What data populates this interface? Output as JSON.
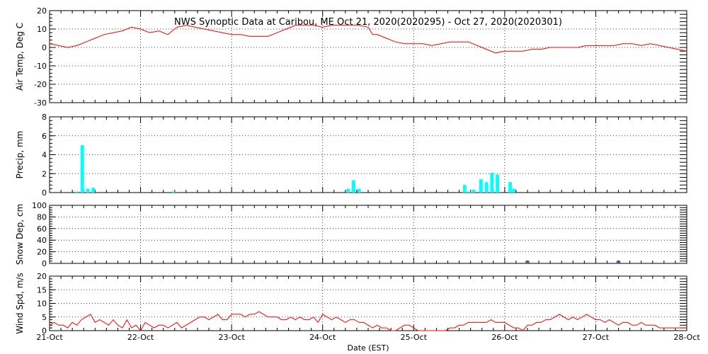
{
  "title": "NWS Synoptic Data at Caribou, ME   Oct 21, 2020(2020295) - Oct 27, 2020(2020301)",
  "chart_data": {
    "type": "line",
    "x_axis": {
      "label": "Date (EST)",
      "tick_labels": [
        "21-Oct",
        "22-Oct",
        "23-Oct",
        "24-Oct",
        "25-Oct",
        "26-Oct",
        "27-Oct",
        "28-Oct"
      ],
      "start": 0,
      "end": 7,
      "unit": "days since 21-Oct"
    },
    "panels": [
      {
        "id": "air-temp",
        "ylabel": "Air Temp, Deg C",
        "type": "line",
        "color": "#ff0000",
        "ylim": [
          -30,
          20
        ],
        "yticks": [
          20,
          10,
          0,
          -10,
          -20,
          -30
        ],
        "series": {
          "x": [
            0,
            0.1,
            0.2,
            0.3,
            0.4,
            0.5,
            0.6,
            0.7,
            0.8,
            0.9,
            1.0,
            1.1,
            1.2,
            1.3,
            1.4,
            1.5,
            1.6,
            1.7,
            1.8,
            1.9,
            2.0,
            2.1,
            2.2,
            2.3,
            2.4,
            2.5,
            2.6,
            2.7,
            2.8,
            2.9,
            3.0,
            3.1,
            3.2,
            3.3,
            3.4,
            3.5,
            3.55,
            3.6,
            3.7,
            3.8,
            3.9,
            4.0,
            4.1,
            4.2,
            4.3,
            4.4,
            4.5,
            4.6,
            4.7,
            4.8,
            4.9,
            5.0,
            5.1,
            5.2,
            5.3,
            5.4,
            5.5,
            5.6,
            5.7,
            5.8,
            5.9,
            6.0,
            6.1,
            6.2,
            6.3,
            6.4,
            6.5,
            6.6,
            6.7,
            6.8,
            6.9,
            7.0
          ],
          "y": [
            2,
            1,
            0,
            1,
            3,
            5,
            7,
            8,
            9,
            11,
            10,
            8,
            9,
            7,
            11,
            12,
            11,
            10,
            9,
            8,
            7,
            7,
            6,
            6,
            6,
            8,
            10,
            12,
            12,
            12,
            11,
            12,
            12,
            12,
            12,
            11,
            7,
            7,
            5,
            3,
            2,
            2,
            2,
            1,
            2,
            3,
            3,
            3,
            1,
            -1,
            -3,
            -2,
            -2,
            -2,
            -1,
            -1,
            0,
            0,
            0,
            0,
            1,
            1,
            1,
            1,
            2,
            2,
            1,
            2,
            1,
            0,
            -1,
            -2
          ]
        }
      },
      {
        "id": "precip",
        "ylabel": "Precip, mm",
        "type": "bar",
        "color": "#00ffff",
        "ylim": [
          0,
          8
        ],
        "yticks": [
          8,
          6,
          4,
          2,
          0
        ],
        "series": {
          "x": [
            0.3,
            0.36,
            0.42,
            0.48,
            1.36,
            3.28,
            3.34,
            3.4,
            4.56,
            4.6,
            4.62,
            4.66,
            4.74,
            4.8,
            4.86,
            4.92,
            5.06,
            5.1
          ],
          "y": [
            0.1,
            5.0,
            0.4,
            0.5,
            0.1,
            0.4,
            1.3,
            0.4,
            0.8,
            0.1,
            0.1,
            0.3,
            1.4,
            1.1,
            2.1,
            1.9,
            1.1,
            0.4
          ]
        }
      },
      {
        "id": "snow-depth",
        "ylabel": "Snow Dep, cm",
        "type": "scatter",
        "color": "#00008b",
        "ylim": [
          0,
          100
        ],
        "yticks": [
          100,
          80,
          60,
          40,
          20,
          0
        ],
        "series": {
          "x": [
            5.25,
            6.25
          ],
          "y": [
            0,
            0
          ]
        }
      },
      {
        "id": "wind-speed",
        "ylabel": "Wind Spd, m/s",
        "type": "line",
        "color": "#ff0000",
        "ylim": [
          0,
          20
        ],
        "yticks": [
          20,
          15,
          10,
          5,
          0
        ],
        "series": {
          "x": [
            0,
            0.05,
            0.1,
            0.15,
            0.2,
            0.25,
            0.3,
            0.35,
            0.4,
            0.45,
            0.5,
            0.55,
            0.6,
            0.65,
            0.7,
            0.75,
            0.8,
            0.85,
            0.9,
            0.95,
            1.0,
            1.05,
            1.1,
            1.15,
            1.2,
            1.25,
            1.3,
            1.35,
            1.4,
            1.45,
            1.5,
            1.55,
            1.6,
            1.65,
            1.7,
            1.75,
            1.8,
            1.85,
            1.9,
            1.95,
            2.0,
            2.05,
            2.1,
            2.15,
            2.2,
            2.25,
            2.3,
            2.35,
            2.4,
            2.45,
            2.5,
            2.55,
            2.6,
            2.65,
            2.7,
            2.75,
            2.8,
            2.85,
            2.9,
            2.95,
            3.0,
            3.05,
            3.1,
            3.15,
            3.2,
            3.25,
            3.3,
            3.35,
            3.4,
            3.45,
            3.5,
            3.55,
            3.6,
            3.65,
            3.7,
            3.75,
            3.8,
            3.85,
            3.9,
            3.95,
            4.0,
            4.05,
            4.1,
            4.15,
            4.2,
            4.25,
            4.3,
            4.35,
            4.4,
            4.45,
            4.5,
            4.55,
            4.6,
            4.65,
            4.7,
            4.75,
            4.8,
            4.85,
            4.9,
            4.95,
            5.0,
            5.05,
            5.1,
            5.15,
            5.2,
            5.25,
            5.3,
            5.35,
            5.4,
            5.45,
            5.5,
            5.55,
            5.6,
            5.65,
            5.7,
            5.75,
            5.8,
            5.85,
            5.9,
            5.95,
            6.0,
            6.05,
            6.1,
            6.15,
            6.2,
            6.25,
            6.3,
            6.35,
            6.4,
            6.45,
            6.5,
            6.55,
            6.6,
            6.65,
            6.7,
            6.75,
            6.8,
            6.85,
            6.9,
            6.95,
            7.0
          ],
          "y": [
            2,
            3,
            2,
            2,
            1,
            3,
            2,
            4,
            5,
            6,
            3,
            4,
            3,
            2,
            4,
            2,
            1,
            4,
            1,
            2,
            0,
            3,
            2,
            1,
            2,
            2,
            1,
            2,
            3,
            1,
            2,
            3,
            4,
            5,
            5,
            4,
            5,
            6,
            4,
            4,
            6,
            6,
            6,
            5,
            6,
            6,
            7,
            6,
            5,
            5,
            5,
            4,
            4,
            5,
            4,
            5,
            4,
            4,
            5,
            3,
            6,
            5,
            4,
            5,
            4,
            3,
            4,
            4,
            3,
            3,
            2,
            1,
            2,
            1,
            1,
            0,
            0,
            1,
            2,
            2,
            1,
            0,
            0,
            0,
            0,
            0,
            0,
            0,
            1,
            1,
            2,
            2,
            3,
            3,
            3,
            3,
            3,
            4,
            3,
            3,
            3,
            2,
            1,
            1,
            0,
            2,
            2,
            3,
            3,
            4,
            4,
            5,
            6,
            5,
            4,
            5,
            4,
            5,
            6,
            5,
            4,
            4,
            3,
            4,
            3,
            2,
            3,
            3,
            2,
            2,
            3,
            2,
            2,
            2,
            1,
            1,
            1,
            1,
            1,
            1,
            1
          ]
        }
      }
    ]
  }
}
